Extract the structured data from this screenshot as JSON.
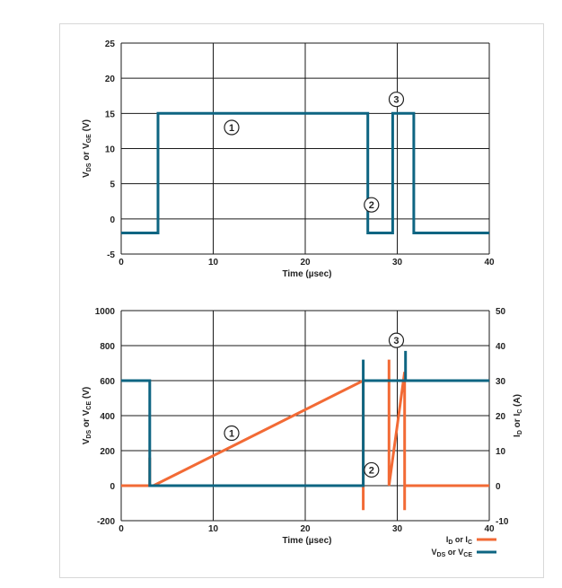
{
  "colors": {
    "teal": "#0e6582",
    "orange": "#f26a35",
    "grid": "#1a1a1a",
    "text": "#222222"
  },
  "chart_data": [
    {
      "type": "line",
      "title": "",
      "xlabel": "Time (µsec)",
      "ylabel_parts": {
        "a": "V",
        "a_sub": "DS",
        "mid": " or V",
        "b_sub": "GE",
        "end": " (V)"
      },
      "xlim": [
        0,
        40
      ],
      "ylim": [
        -5,
        25
      ],
      "x_ticks": [
        0,
        10,
        20,
        30,
        40
      ],
      "y_ticks": [
        -5,
        0,
        5,
        10,
        15,
        20,
        25
      ],
      "grid": true,
      "series": [
        {
          "color": "#0e6582",
          "x": [
            0,
            4,
            4,
            26.8,
            26.8,
            29.5,
            29.5,
            31.8,
            31.8,
            40
          ],
          "y": [
            -2,
            -2,
            15,
            15,
            -2,
            -2,
            15,
            15,
            -2,
            -2
          ]
        }
      ],
      "annotations": [
        {
          "label": "1",
          "x": 12,
          "y": 13
        },
        {
          "label": "2",
          "x": 27.2,
          "y": 2
        },
        {
          "label": "3",
          "x": 29.9,
          "y": 17
        }
      ]
    },
    {
      "type": "line",
      "title": "",
      "xlabel": "Time (µsec)",
      "ylabel_parts": {
        "a": "V",
        "a_sub": "DS",
        "mid": " or V",
        "b_sub": "CE",
        "end": " (V)"
      },
      "y2label_parts": {
        "a": "I",
        "a_sub": "D",
        "mid": " or I",
        "b_sub": "C",
        "end": " (A)"
      },
      "xlim": [
        0,
        40
      ],
      "ylim": [
        -200,
        1000
      ],
      "y2lim": [
        -10,
        50
      ],
      "x_ticks": [
        0,
        10,
        20,
        30,
        40
      ],
      "y_ticks": [
        -200,
        0,
        200,
        400,
        600,
        800,
        1000
      ],
      "y2_ticks": [
        -10,
        0,
        10,
        20,
        30,
        40,
        50
      ],
      "grid": true,
      "series": [
        {
          "legend_parts": {
            "a": "I",
            "a_sub": "D",
            "mid": " or I",
            "b_sub": "C"
          },
          "color": "#f26a35",
          "axis": "right",
          "x": [
            0,
            3.1,
            3.1,
            3.1,
            3.5,
            26.3,
            26.3,
            26.3,
            29.1,
            29.1,
            29.1,
            30.8,
            30.8,
            30.8,
            40
          ],
          "y": [
            0,
            0,
            8,
            0,
            0,
            30,
            -7,
            30,
            30,
            36,
            0,
            32.5,
            -7,
            0,
            0
          ]
        },
        {
          "legend_parts": {
            "a": "V",
            "a_sub": "DS",
            "mid": " or V",
            "b_sub": "CE"
          },
          "color": "#0e6582",
          "axis": "left",
          "x": [
            0,
            3.1,
            3.1,
            26.3,
            26.3,
            26.3,
            30.9,
            30.9,
            30.9,
            40
          ],
          "y": [
            600,
            600,
            0,
            0,
            720,
            600,
            600,
            770,
            600,
            600
          ]
        }
      ],
      "annotations": [
        {
          "label": "1",
          "x": 12,
          "y": 300
        },
        {
          "label": "2",
          "x": 27.2,
          "y": 90
        },
        {
          "label": "3",
          "x": 29.9,
          "y": 830
        }
      ],
      "legend_position": "bottom-right"
    }
  ]
}
